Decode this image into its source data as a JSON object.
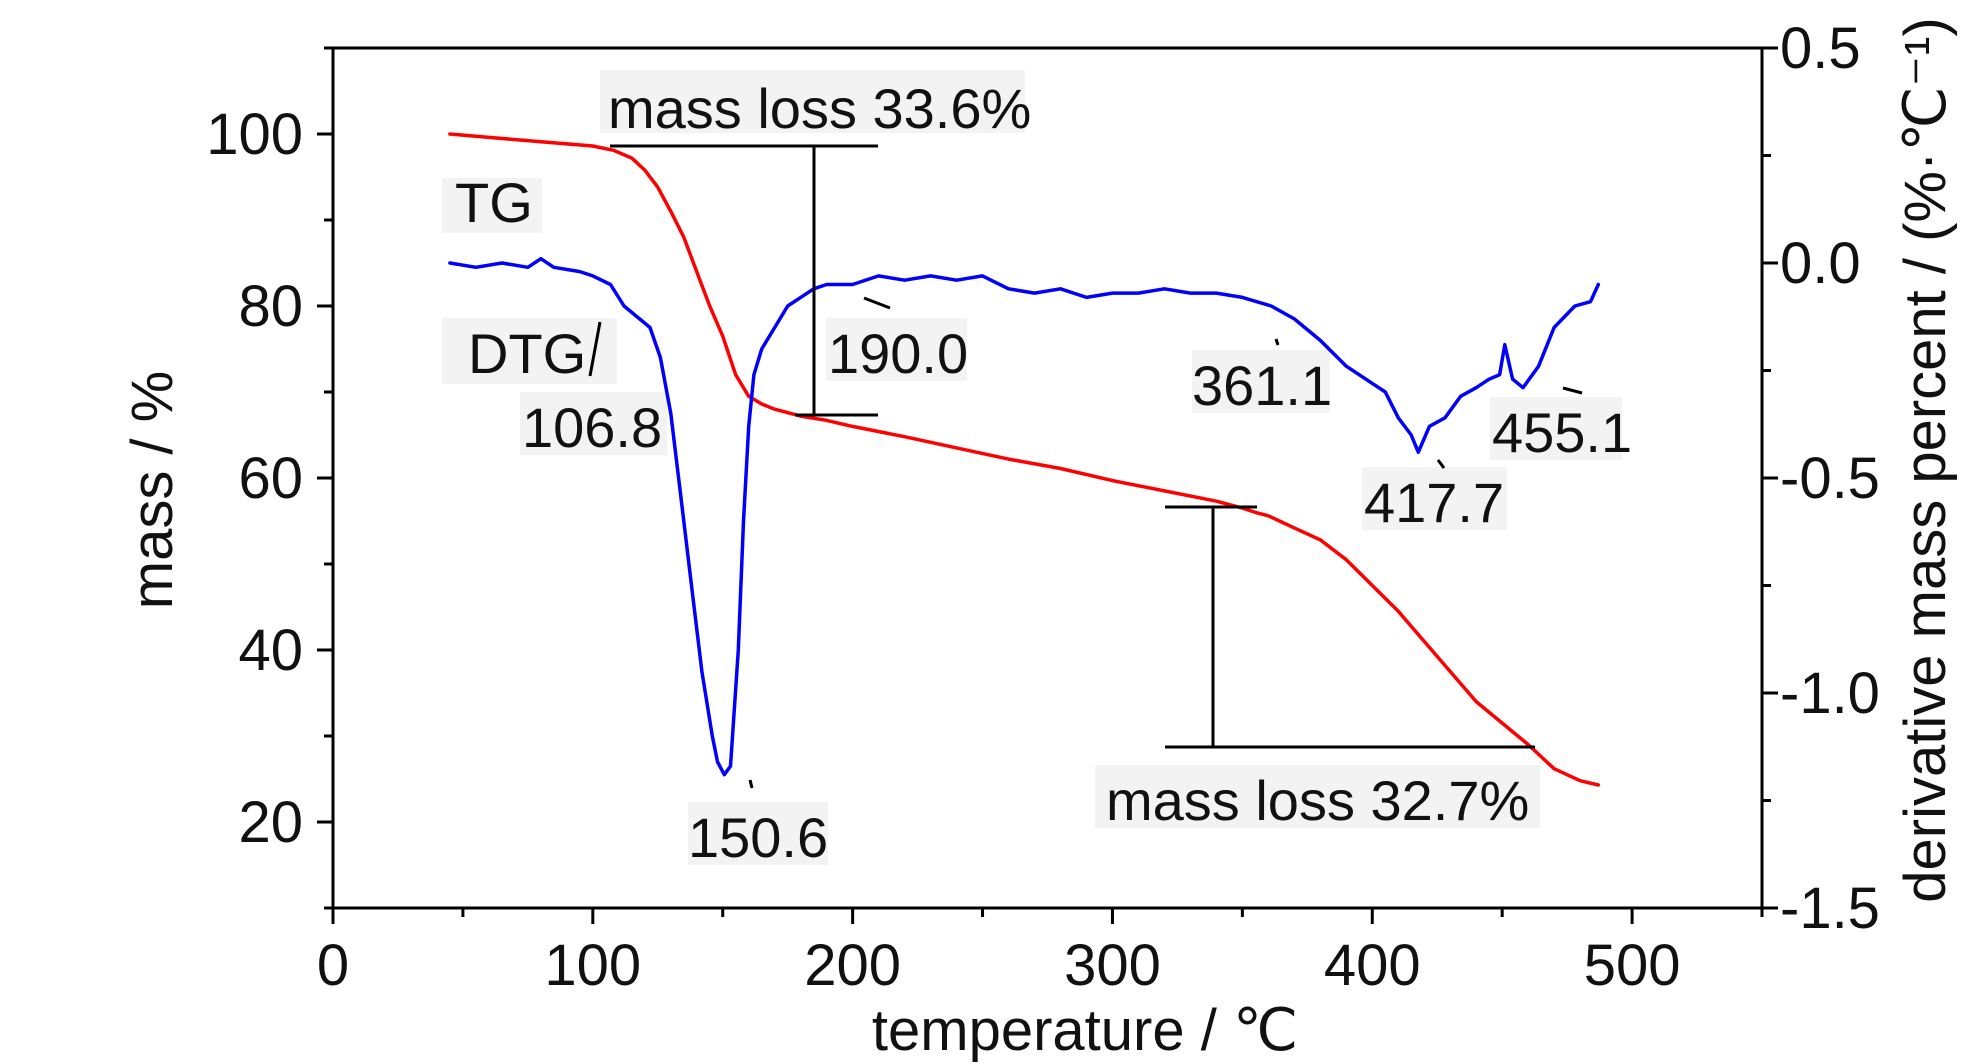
{
  "chart_data": {
    "type": "line",
    "xlabel": "temperature / ℃",
    "ylabel_left": "mass / %",
    "ylabel_right": "derivative mass percent / (%·℃⁻¹)",
    "xlim": [
      0,
      550
    ],
    "ylim_left": [
      10,
      110
    ],
    "ylim_right": [
      -1.5,
      0.5
    ],
    "x_ticks": [
      "0",
      "100",
      "200",
      "300",
      "400",
      "500"
    ],
    "y_left_ticks": [
      "20",
      "40",
      "60",
      "80",
      "100"
    ],
    "y_right_ticks": [
      "0.5",
      "0.0",
      "-0.5",
      "-1.0",
      "-1.5"
    ],
    "grid": false,
    "colors": {
      "TG": "#ff0000",
      "DTG": "#0000ff",
      "axes": "#000000"
    },
    "series": [
      {
        "name": "TG",
        "axis": "left",
        "x": [
          45,
          60,
          80,
          100,
          108,
          115,
          120,
          125,
          130,
          135,
          140,
          145,
          150,
          155,
          160,
          165,
          170,
          180,
          190,
          200,
          220,
          240,
          260,
          280,
          300,
          320,
          340,
          350,
          355,
          360,
          370,
          380,
          390,
          400,
          410,
          420,
          430,
          440,
          450,
          460,
          470,
          480,
          487
        ],
        "y": [
          100,
          99.6,
          99.1,
          98.6,
          98.1,
          97.2,
          95.8,
          93.8,
          91.0,
          88.0,
          84.0,
          80.0,
          76.5,
          72.0,
          69.5,
          68.6,
          68.0,
          67.2,
          66.7,
          66.0,
          64.8,
          63.5,
          62.2,
          61.1,
          59.7,
          58.5,
          57.3,
          56.5,
          56.0,
          55.6,
          54.2,
          52.8,
          50.5,
          47.5,
          44.5,
          41.0,
          37.5,
          34.0,
          31.5,
          29.0,
          26.2,
          24.8,
          24.3
        ]
      },
      {
        "name": "DTG",
        "axis": "right",
        "x": [
          45,
          55,
          65,
          75,
          80,
          85,
          95,
          100,
          106.8,
          112,
          118,
          122,
          126,
          130,
          134,
          138,
          142,
          146,
          148,
          150.6,
          153,
          156,
          158,
          160,
          162,
          165,
          170,
          175,
          180,
          185,
          190,
          195,
          200,
          210,
          220,
          230,
          240,
          250,
          260,
          270,
          280,
          290,
          300,
          310,
          320,
          330,
          340,
          350,
          361.1,
          370,
          380,
          390,
          400,
          405,
          410,
          415,
          417.7,
          422,
          428,
          434,
          440,
          445,
          449,
          451,
          454,
          458,
          464,
          470,
          478,
          484,
          487
        ],
        "y": [
          0.0,
          -0.01,
          0.0,
          -0.01,
          0.01,
          -0.01,
          -0.02,
          -0.03,
          -0.05,
          -0.1,
          -0.13,
          -0.15,
          -0.22,
          -0.35,
          -0.55,
          -0.75,
          -0.95,
          -1.1,
          -1.16,
          -1.19,
          -1.17,
          -0.9,
          -0.6,
          -0.38,
          -0.26,
          -0.2,
          -0.15,
          -0.1,
          -0.08,
          -0.06,
          -0.05,
          -0.05,
          -0.05,
          -0.03,
          -0.04,
          -0.03,
          -0.04,
          -0.03,
          -0.06,
          -0.07,
          -0.06,
          -0.08,
          -0.07,
          -0.07,
          -0.06,
          -0.07,
          -0.07,
          -0.08,
          -0.1,
          -0.13,
          -0.18,
          -0.24,
          -0.28,
          -0.3,
          -0.36,
          -0.4,
          -0.44,
          -0.38,
          -0.36,
          -0.31,
          -0.29,
          -0.27,
          -0.26,
          -0.19,
          -0.27,
          -0.29,
          -0.24,
          -0.15,
          -0.1,
          -0.09,
          -0.05
        ]
      }
    ],
    "labels": {
      "TG": "TG",
      "DTG": "DTG",
      "loss1": "mass loss 33.6%",
      "loss2": "mass loss 32.7%",
      "p106": "106.8",
      "p150": "150.6",
      "p190": "190.0",
      "p361": "361.1",
      "p417": "417.7",
      "p455": "455.1"
    }
  }
}
